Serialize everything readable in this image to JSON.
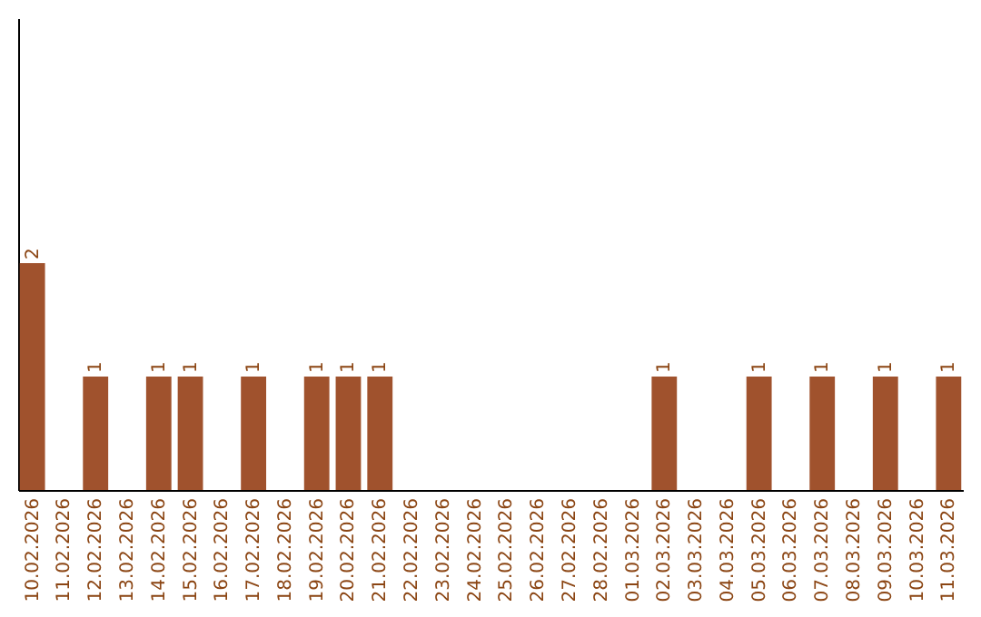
{
  "chart_data": {
    "type": "bar",
    "categories": [
      "10.02.2026",
      "11.02.2026",
      "12.02.2026",
      "13.02.2026",
      "14.02.2026",
      "15.02.2026",
      "16.02.2026",
      "17.02.2026",
      "18.02.2026",
      "19.02.2026",
      "20.02.2026",
      "21.02.2026",
      "22.02.2026",
      "23.02.2026",
      "24.02.2026",
      "25.02.2026",
      "26.02.2026",
      "27.02.2026",
      "28.02.2026",
      "01.03.2026",
      "02.03.2026",
      "03.03.2026",
      "04.03.2026",
      "05.03.2026",
      "06.03.2026",
      "07.03.2026",
      "08.03.2026",
      "09.03.2026",
      "10.03.2026",
      "11.03.2026"
    ],
    "values": [
      2,
      0,
      1,
      0,
      1,
      1,
      0,
      1,
      0,
      1,
      1,
      1,
      0,
      0,
      0,
      0,
      0,
      0,
      0,
      0,
      1,
      0,
      0,
      1,
      0,
      1,
      0,
      1,
      0,
      1
    ],
    "value_labels": [
      "2",
      null,
      "1",
      null,
      "1",
      "1",
      null,
      "1",
      null,
      "1",
      "1",
      "1",
      null,
      null,
      null,
      null,
      null,
      null,
      null,
      null,
      "1",
      null,
      null,
      "1",
      null,
      "1",
      null,
      "1",
      null,
      "1"
    ],
    "color": "#a0522d",
    "ylim": [
      0,
      4.16
    ],
    "tick_labels": "x"
  }
}
